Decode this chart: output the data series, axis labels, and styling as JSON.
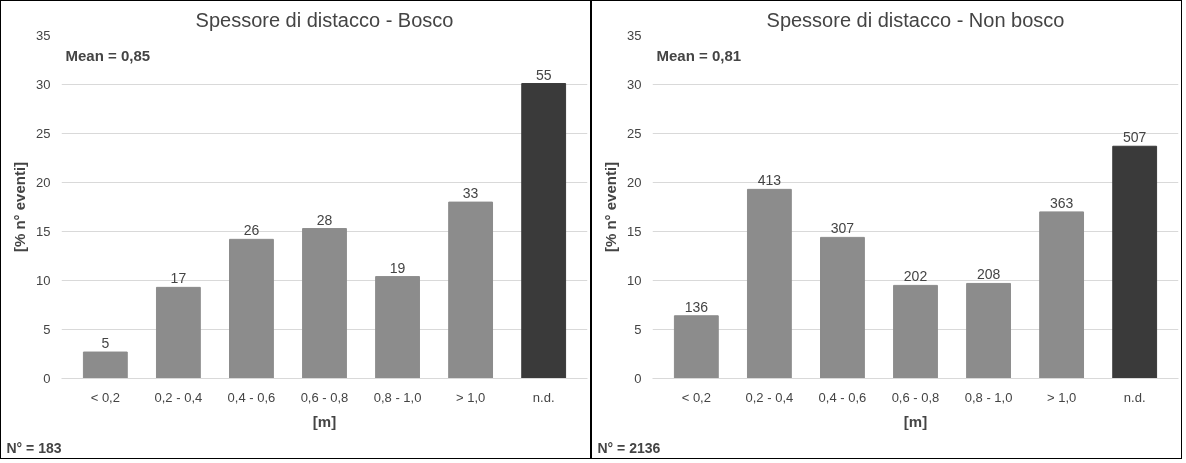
{
  "chart_data": [
    {
      "type": "bar",
      "title": "Spessore di distacco - Bosco",
      "xlabel": "[m]",
      "ylabel": "[% n° eventi]",
      "categories": [
        "< 0,2",
        "0,2 - 0,4",
        "0,4 - 0,6",
        "0,6 - 0,8",
        "0,8 - 1,0",
        "> 1,0",
        "n.d."
      ],
      "values": [
        2.7,
        9.3,
        14.2,
        15.3,
        10.4,
        18.0,
        30.1
      ],
      "colors": [
        "#8c8c8c",
        "#8c8c8c",
        "#8c8c8c",
        "#8c8c8c",
        "#8c8c8c",
        "#8c8c8c",
        "#3a3a3a"
      ],
      "ylim": [
        0,
        35
      ],
      "yticks": [
        0,
        5,
        10,
        15,
        20,
        25,
        30,
        35
      ],
      "grid": "y",
      "annotations": [
        "Mean = 0,85",
        "N° = 183",
        {
          "text": "5",
          "x": "< 0,2",
          "y": 2.7
        },
        {
          "text": "17",
          "x": "0,2 - 0,4",
          "y": 9.3
        },
        {
          "text": "26",
          "x": "0,4 - 0,6",
          "y": 14.2
        },
        {
          "text": "28",
          "x": "0,6 - 0,8",
          "y": 15.3
        },
        {
          "text": "19",
          "x": "0,8 - 1,0",
          "y": 10.4
        },
        {
          "text": "33",
          "x": "> 1,0",
          "y": 18.0
        },
        {
          "text": "55",
          "x": "n.d.",
          "y": 30.1
        }
      ]
    },
    {
      "type": "bar",
      "title": "Spessore di distacco - Non bosco",
      "xlabel": "[m]",
      "ylabel": "[% n° eventi]",
      "categories": [
        "< 0,2",
        "0,2 - 0,4",
        "0,4 - 0,6",
        "0,6 - 0,8",
        "0,8 - 1,0",
        "> 1,0",
        "n.d."
      ],
      "values": [
        6.4,
        19.3,
        14.4,
        9.5,
        9.7,
        17.0,
        23.7
      ],
      "colors": [
        "#8c8c8c",
        "#8c8c8c",
        "#8c8c8c",
        "#8c8c8c",
        "#8c8c8c",
        "#8c8c8c",
        "#3a3a3a"
      ],
      "ylim": [
        0,
        35
      ],
      "yticks": [
        0,
        5,
        10,
        15,
        20,
        25,
        30,
        35
      ],
      "grid": "y",
      "annotations": [
        "Mean = 0,81",
        "N° = 2136",
        {
          "text": "136",
          "x": "< 0,2",
          "y": 6.4
        },
        {
          "text": "413",
          "x": "0,2 - 0,4",
          "y": 19.3
        },
        {
          "text": "307",
          "x": "0,4 - 0,6",
          "y": 14.4
        },
        {
          "text": "202",
          "x": "0,6 - 0,8",
          "y": 9.5
        },
        {
          "text": "208",
          "x": "0,8 - 1,0",
          "y": 9.7
        },
        {
          "text": "363",
          "x": "> 1,0",
          "y": 17.0
        },
        {
          "text": "507",
          "x": "n.d.",
          "y": 23.7
        }
      ]
    }
  ]
}
